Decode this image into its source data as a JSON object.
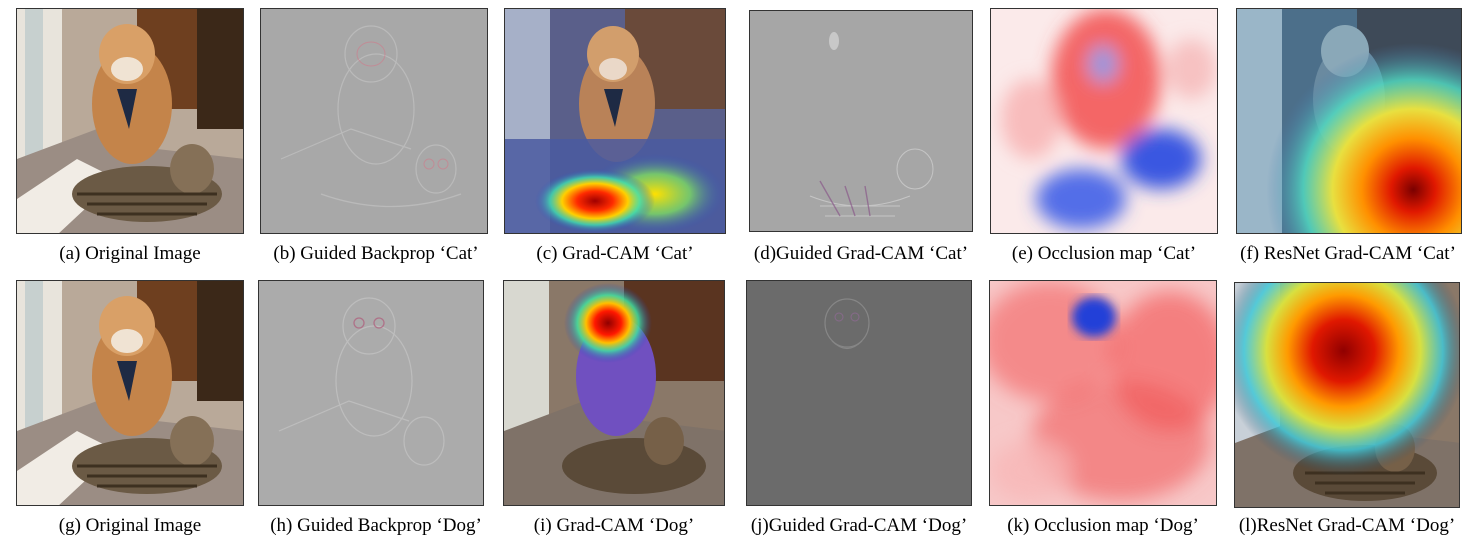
{
  "figure": {
    "rows": [
      {
        "panels": [
          {
            "caption": "(a) Original Image",
            "kind": "photo"
          },
          {
            "caption": "(b) Guided Backprop ‘Cat’",
            "kind": "gbp"
          },
          {
            "caption": "(c) Grad-CAM ‘Cat’",
            "kind": "gradcam_cat"
          },
          {
            "caption": "(d)Guided Grad-CAM ‘Cat’",
            "kind": "ggc"
          },
          {
            "caption": "(e) Occlusion map ‘Cat’",
            "kind": "occ_cat"
          },
          {
            "caption": "(f) ResNet Grad-CAM ‘Cat’",
            "kind": "resnet_cat"
          }
        ]
      },
      {
        "panels": [
          {
            "caption": "(g) Original Image",
            "kind": "photo"
          },
          {
            "caption": "(h) Guided Backprop ‘Dog’",
            "kind": "gbp"
          },
          {
            "caption": "(i) Grad-CAM ‘Dog’",
            "kind": "gradcam_dog"
          },
          {
            "caption": "(j)Guided Grad-CAM ‘Dog’",
            "kind": "ggc_dark"
          },
          {
            "caption": "(k) Occlusion map ‘Dog’",
            "kind": "occ_dog"
          },
          {
            "caption": "(l)ResNet Grad-CAM ‘Dog’",
            "kind": "resnet_dog"
          }
        ]
      }
    ]
  }
}
